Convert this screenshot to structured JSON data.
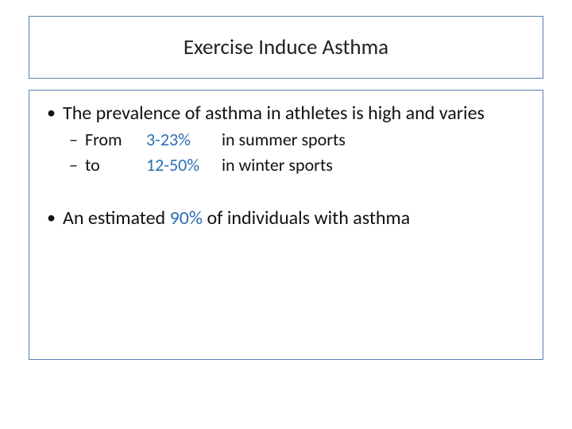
{
  "colors": {
    "border": "#5a7fb0",
    "accent": "#2e6eb5",
    "text": "#111111",
    "background": "#ffffff"
  },
  "typography": {
    "title_fontsize": 27,
    "body_fontsize": 24,
    "sub_fontsize": 22,
    "font_family": "Calibri"
  },
  "title": "Exercise Induce Asthma",
  "bullets": [
    {
      "text": "The prevalence of asthma in athletes is high and varies",
      "sub": [
        {
          "lead": "From",
          "pct": "3-23%",
          "tail": "in summer sports"
        },
        {
          "lead": "to",
          "pct": "12-50%",
          "tail": "in winter sports"
        }
      ]
    },
    {
      "text_prefix": "An estimated ",
      "pct": "90%",
      "text_suffix": " of individuals with asthma"
    }
  ]
}
